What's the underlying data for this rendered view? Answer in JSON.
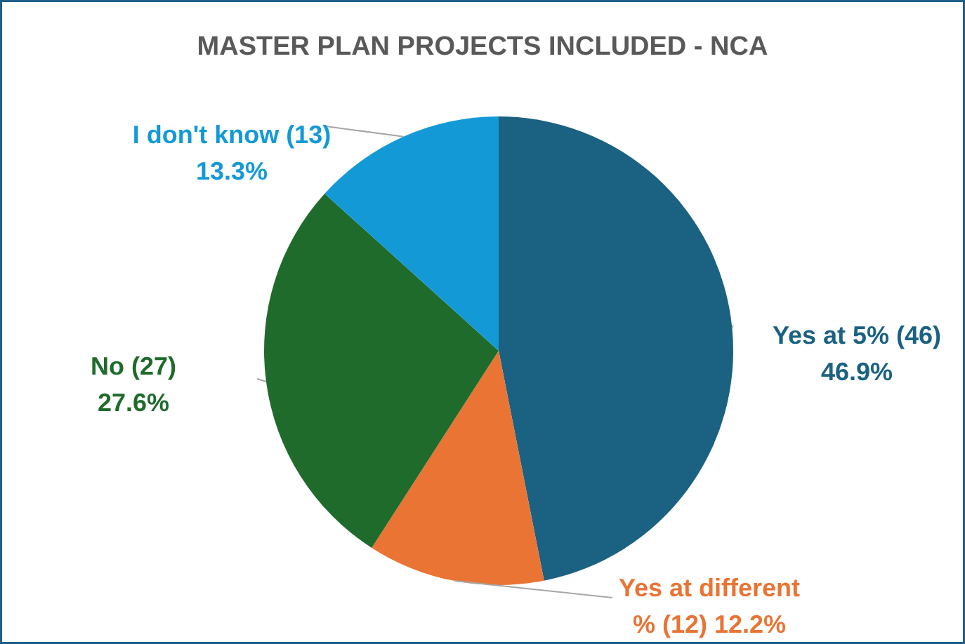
{
  "chart_data": {
    "type": "pie",
    "title": "MASTER PLAN PROJECTS INCLUDED - NCA",
    "categories": [
      "Yes at 5% (46)",
      "Yes at different % (12)",
      "No (27)",
      "I don't know (13)"
    ],
    "values": [
      46.9,
      12.2,
      27.6,
      13.3
    ],
    "value_labels": [
      "46.9%",
      "12.2%",
      "27.6%",
      "13.3%"
    ],
    "colors": [
      "#1a6182",
      "#e97434",
      "#1f6b2b",
      "#139ad6"
    ]
  }
}
